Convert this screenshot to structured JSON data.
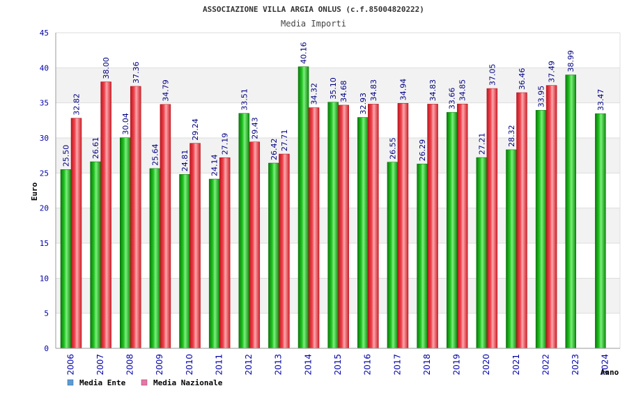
{
  "chart_data": {
    "type": "bar",
    "title": "ASSOCIAZIONE VILLA ARGIA ONLUS (c.f.85004820222)",
    "subtitle": "Media Importi",
    "xlabel": "Anno",
    "ylabel": "Euro",
    "ylim": [
      0,
      45
    ],
    "yticks": [
      0,
      5,
      10,
      15,
      20,
      25,
      30,
      35,
      40,
      45
    ],
    "grid": true,
    "legend_position": "bottom-left",
    "categories": [
      "2006",
      "2007",
      "2008",
      "2009",
      "2010",
      "2011",
      "2012",
      "2013",
      "2014",
      "2015",
      "2016",
      "2017",
      "2018",
      "2019",
      "2020",
      "2021",
      "2022",
      "2023",
      "2024"
    ],
    "series": [
      {
        "name": "Media Ente",
        "color": "#1a9e1a",
        "legend_color": "#5b9bd5",
        "values": [
          25.5,
          26.61,
          30.04,
          25.64,
          24.81,
          24.14,
          33.51,
          26.42,
          40.16,
          35.1,
          32.93,
          26.55,
          26.29,
          33.66,
          27.21,
          28.32,
          33.95,
          38.99,
          33.47
        ],
        "labels": [
          "25.50",
          "26.61",
          "30.04",
          "25.64",
          "24.81",
          "24.14",
          "33.51",
          "26.42",
          "40.16",
          "35.10",
          "32.93",
          "26.55",
          "26.29",
          "33.66",
          "27.21",
          "28.32",
          "33.95",
          "38.99",
          "33.47"
        ]
      },
      {
        "name": "Media Nazionale",
        "color": "#e0303a",
        "legend_color": "#e377a6",
        "values": [
          32.82,
          38.0,
          37.36,
          34.79,
          29.24,
          27.19,
          29.43,
          27.71,
          34.32,
          34.68,
          34.83,
          34.94,
          34.83,
          34.85,
          37.05,
          36.46,
          37.49,
          null,
          null
        ],
        "labels": [
          "32.82",
          "38.00",
          "37.36",
          "34.79",
          "29.24",
          "27.19",
          "29.43",
          "27.71",
          "34.32",
          "34.68",
          "34.83",
          "34.94",
          "34.83",
          "34.85",
          "37.05",
          "36.46",
          "37.49",
          null,
          null
        ]
      }
    ]
  },
  "colors": {
    "axis_text": "#0000aa",
    "value_label": "#000080",
    "band": "#f2f2f2",
    "grid": "#dddddd",
    "title": "#333333"
  }
}
